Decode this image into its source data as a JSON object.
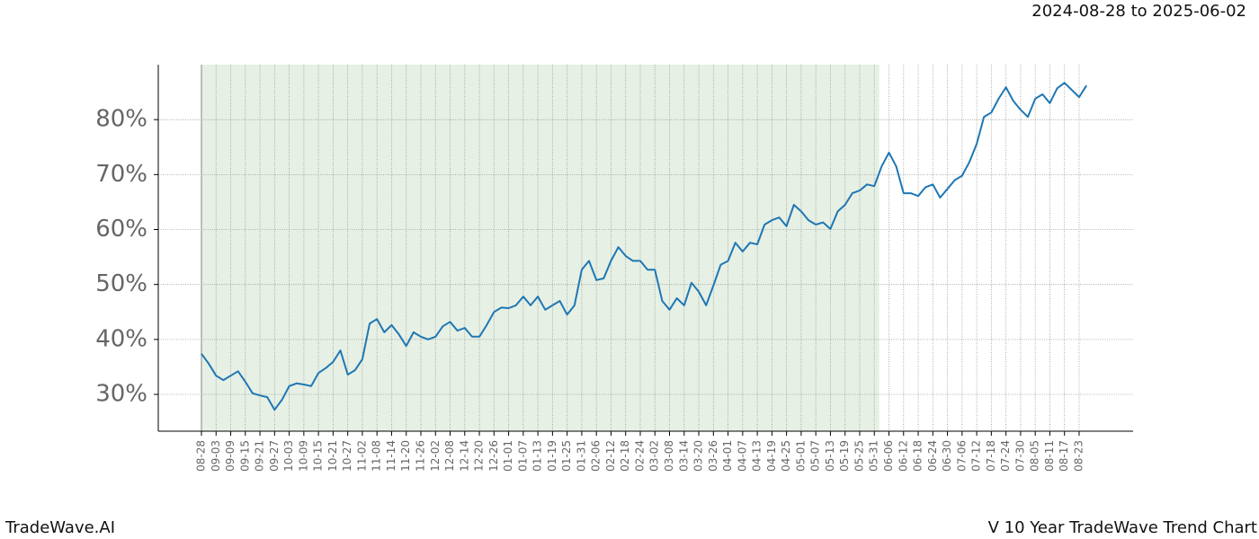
{
  "chart_data": {
    "type": "line",
    "title": "2024-08-28 to 2025-06-02",
    "footer_left": "TradeWave.AI",
    "footer_right": "V 10 Year TradeWave Trend Chart",
    "x": [
      "08-28",
      "08-31",
      "09-03",
      "09-06",
      "09-09",
      "09-12",
      "09-15",
      "09-18",
      "09-21",
      "09-24",
      "09-27",
      "09-30",
      "10-03",
      "10-06",
      "10-09",
      "10-12",
      "10-15",
      "10-18",
      "10-21",
      "10-24",
      "10-27",
      "10-30",
      "11-02",
      "11-05",
      "11-08",
      "11-11",
      "11-14",
      "11-17",
      "11-20",
      "11-23",
      "11-26",
      "11-29",
      "12-02",
      "12-05",
      "12-08",
      "12-11",
      "12-14",
      "12-17",
      "12-20",
      "12-23",
      "12-26",
      "12-29",
      "01-01",
      "01-04",
      "01-07",
      "01-10",
      "01-13",
      "01-16",
      "01-19",
      "01-22",
      "01-25",
      "01-28",
      "01-31",
      "02-03",
      "02-06",
      "02-09",
      "02-12",
      "02-15",
      "02-18",
      "02-21",
      "02-24",
      "02-27",
      "03-02",
      "03-05",
      "03-08",
      "03-11",
      "03-14",
      "03-17",
      "03-20",
      "03-23",
      "03-26",
      "03-29",
      "04-01",
      "04-04",
      "04-07",
      "04-10",
      "04-13",
      "04-16",
      "04-19",
      "04-22",
      "04-25",
      "04-28",
      "05-01",
      "05-04",
      "05-07",
      "05-10",
      "05-13",
      "05-16",
      "05-19",
      "05-22",
      "05-25",
      "05-28",
      "05-31",
      "06-03",
      "06-06",
      "06-09",
      "06-12",
      "06-15",
      "06-18",
      "06-21",
      "06-24",
      "06-27",
      "06-30",
      "07-03",
      "07-06",
      "07-09",
      "07-12",
      "07-15",
      "07-18",
      "07-21",
      "07-24",
      "07-27",
      "07-30",
      "08-02",
      "08-05",
      "08-08",
      "08-11",
      "08-14",
      "08-17",
      "08-20",
      "08-23",
      "08-26"
    ],
    "series": [
      {
        "color": "#1f77b4",
        "values": [
          37.4,
          35.6,
          33.4,
          32.6,
          33.4,
          34.2,
          32.3,
          30.2,
          29.8,
          29.5,
          27.2,
          29.0,
          31.5,
          32.0,
          31.8,
          31.5,
          33.9,
          34.8,
          35.9,
          38.0,
          33.6,
          34.4,
          36.4,
          42.9,
          43.7,
          41.3,
          42.6,
          40.9,
          38.8,
          41.3,
          40.5,
          40.0,
          40.5,
          42.4,
          43.2,
          41.6,
          42.1,
          40.5,
          40.5,
          42.6,
          45.0,
          45.8,
          45.7,
          46.2,
          47.8,
          46.2,
          47.8,
          45.4,
          46.2,
          47.0,
          44.5,
          46.2,
          52.7,
          54.3,
          50.8,
          51.1,
          54.3,
          56.8,
          55.2,
          54.3,
          54.3,
          52.7,
          52.7,
          47.0,
          45.4,
          47.5,
          46.2,
          50.3,
          48.7,
          46.2,
          49.8,
          53.6,
          54.3,
          57.6,
          56.0,
          57.6,
          57.3,
          60.9,
          61.7,
          62.2,
          60.6,
          64.5,
          63.3,
          61.7,
          60.9,
          61.3,
          60.1,
          63.3,
          64.5,
          66.6,
          67.1,
          68.2,
          67.9,
          71.5,
          74.0,
          71.5,
          66.6,
          66.6,
          66.1,
          67.7,
          68.2,
          65.8,
          67.4,
          69.0,
          69.8,
          72.3,
          75.6,
          80.5,
          81.3,
          83.8,
          85.9,
          83.4,
          81.8,
          80.5,
          83.8,
          84.6,
          83.0,
          85.7,
          86.7,
          85.4,
          84.1,
          86.2
        ]
      }
    ],
    "xticks": [
      "08-28",
      "09-03",
      "09-09",
      "09-15",
      "09-21",
      "09-27",
      "10-03",
      "10-09",
      "10-15",
      "10-21",
      "10-27",
      "11-02",
      "11-08",
      "11-14",
      "11-20",
      "11-26",
      "12-02",
      "12-08",
      "12-14",
      "12-20",
      "12-26",
      "01-01",
      "01-07",
      "01-13",
      "01-19",
      "01-25",
      "01-31",
      "02-06",
      "02-12",
      "02-18",
      "02-24",
      "03-02",
      "03-08",
      "03-14",
      "03-20",
      "03-26",
      "04-01",
      "04-07",
      "04-13",
      "04-19",
      "04-25",
      "05-01",
      "05-07",
      "05-13",
      "05-19",
      "05-25",
      "05-31",
      "06-06",
      "06-12",
      "06-18",
      "06-24",
      "06-30",
      "07-06",
      "07-12",
      "07-18",
      "07-24",
      "07-30",
      "08-05",
      "08-11",
      "08-17",
      "08-23"
    ],
    "ylim": [
      23.3,
      90
    ],
    "yticks": [
      {
        "value": 30,
        "label": "30%"
      },
      {
        "value": 40,
        "label": "40%"
      },
      {
        "value": 50,
        "label": "50%"
      },
      {
        "value": 60,
        "label": "60%"
      },
      {
        "value": 70,
        "label": "70%"
      },
      {
        "value": 80,
        "label": "80%"
      }
    ],
    "shaded_range": [
      "08-28",
      "06-02"
    ],
    "shade_color": "#e6f0e4",
    "grid": true
  }
}
